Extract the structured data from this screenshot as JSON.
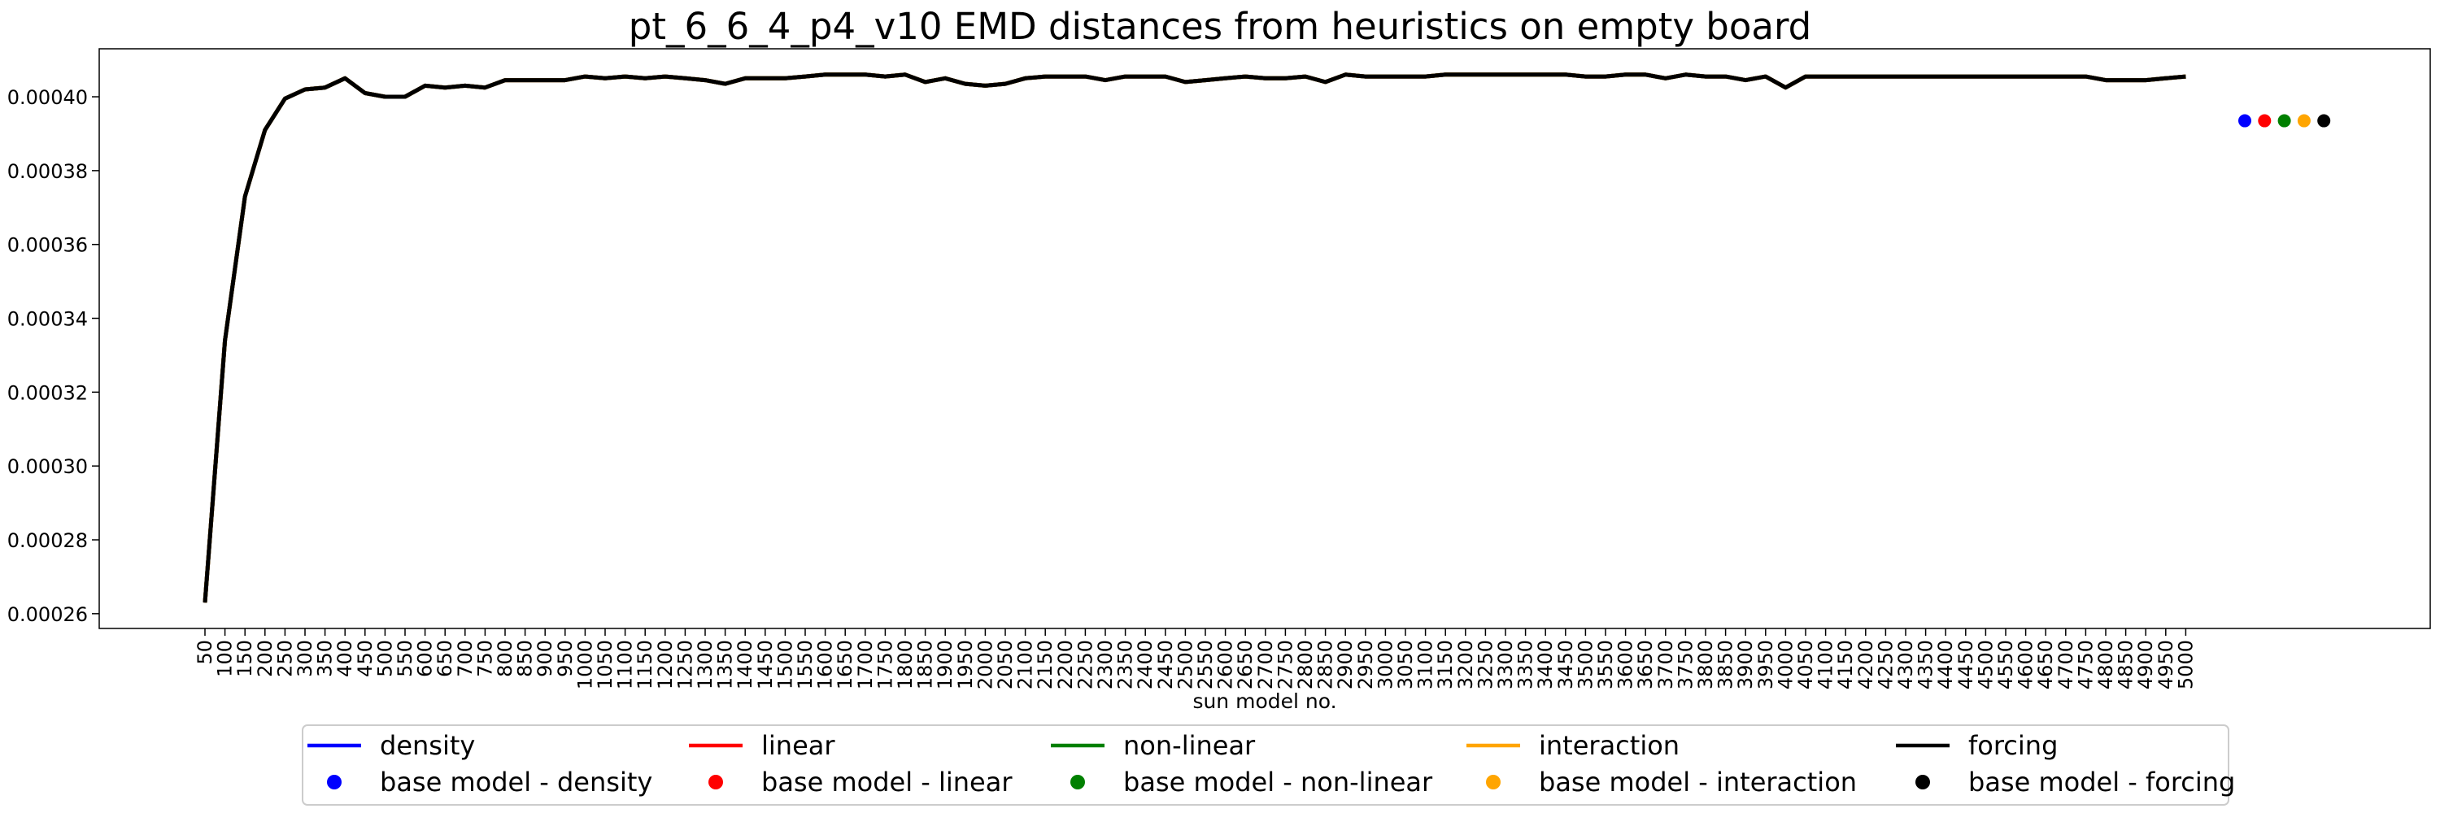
{
  "chart_data": {
    "type": "line",
    "title": "pt_6_6_4_p4_v10 EMD distances from heuristics on empty board",
    "xlabel": "sun model no.",
    "ylabel": "",
    "ylim": [
      0.000256,
      0.000413
    ],
    "yticks": [
      "0.00026",
      "0.00028",
      "0.00030",
      "0.00032",
      "0.00034",
      "0.00036",
      "0.00038",
      "0.00040"
    ],
    "ytick_values": [
      0.00026,
      0.00028,
      0.0003,
      0.00032,
      0.00034,
      0.00036,
      0.00038,
      0.0004
    ],
    "x": [
      "50",
      "100",
      "150",
      "200",
      "250",
      "300",
      "350",
      "400",
      "450",
      "500",
      "550",
      "600",
      "650",
      "700",
      "750",
      "800",
      "850",
      "900",
      "950",
      "1000",
      "1050",
      "1100",
      "1150",
      "1200",
      "1250",
      "1300",
      "1350",
      "1400",
      "1450",
      "1500",
      "1550",
      "1600",
      "1650",
      "1700",
      "1750",
      "1800",
      "1850",
      "1900",
      "1950",
      "2000",
      "2050",
      "2100",
      "2150",
      "2200",
      "2250",
      "2300",
      "2350",
      "2400",
      "2450",
      "2500",
      "2550",
      "2600",
      "2650",
      "2700",
      "2750",
      "2800",
      "2850",
      "2900",
      "2950",
      "3000",
      "3050",
      "3100",
      "3150",
      "3200",
      "3250",
      "3300",
      "3350",
      "3400",
      "3450",
      "3500",
      "3550",
      "3600",
      "3650",
      "3700",
      "3750",
      "3800",
      "3850",
      "3900",
      "3950",
      "4000",
      "4050",
      "4100",
      "4150",
      "4200",
      "4250",
      "4300",
      "4350",
      "4400",
      "4450",
      "4500",
      "4550",
      "4600",
      "4650",
      "4700",
      "4750",
      "4800",
      "4850",
      "4900",
      "4950",
      "5000"
    ],
    "series": [
      {
        "name": "density",
        "color": "#0000ff",
        "values": [
          0.000263,
          0.000334,
          0.000373,
          0.000391,
          0.0003995,
          0.000402,
          0.0004025,
          0.000405,
          0.000401,
          0.0004,
          0.0004,
          0.000403,
          0.0004025,
          0.000403,
          0.0004025,
          0.0004045,
          0.0004045,
          0.0004045,
          0.0004045,
          0.0004055,
          0.000405,
          0.0004055,
          0.000405,
          0.0004055,
          0.000405,
          0.0004045,
          0.0004035,
          0.000405,
          0.000405,
          0.000405,
          0.0004055,
          0.000406,
          0.000406,
          0.000406,
          0.0004055,
          0.000406,
          0.000404,
          0.000405,
          0.0004035,
          0.000403,
          0.0004035,
          0.000405,
          0.0004055,
          0.0004055,
          0.0004055,
          0.0004045,
          0.0004055,
          0.0004055,
          0.0004055,
          0.000404,
          0.0004045,
          0.000405,
          0.0004055,
          0.000405,
          0.000405,
          0.0004055,
          0.000404,
          0.000406,
          0.0004055,
          0.0004055,
          0.0004055,
          0.0004055,
          0.000406,
          0.000406,
          0.000406,
          0.000406,
          0.000406,
          0.000406,
          0.000406,
          0.0004055,
          0.0004055,
          0.000406,
          0.000406,
          0.000405,
          0.000406,
          0.0004055,
          0.0004055,
          0.0004045,
          0.0004055,
          0.0004025,
          0.0004055,
          0.0004055,
          0.0004055,
          0.0004055,
          0.0004055,
          0.0004055,
          0.0004055,
          0.0004055,
          0.0004055,
          0.0004055,
          0.0004055,
          0.0004055,
          0.0004055,
          0.0004055,
          0.0004055,
          0.0004045,
          0.0004045,
          0.0004045,
          0.000405,
          0.0004055
        ]
      },
      {
        "name": "linear",
        "color": "#ff0000",
        "values": [
          0.000263,
          0.000334,
          0.000373,
          0.000391,
          0.0003995,
          0.000402,
          0.0004025,
          0.000405,
          0.000401,
          0.0004,
          0.0004,
          0.000403,
          0.0004025,
          0.000403,
          0.0004025,
          0.0004045,
          0.0004045,
          0.0004045,
          0.0004045,
          0.0004055,
          0.000405,
          0.0004055,
          0.000405,
          0.0004055,
          0.000405,
          0.0004045,
          0.0004035,
          0.000405,
          0.000405,
          0.000405,
          0.0004055,
          0.000406,
          0.000406,
          0.000406,
          0.0004055,
          0.000406,
          0.000404,
          0.000405,
          0.0004035,
          0.000403,
          0.0004035,
          0.000405,
          0.0004055,
          0.0004055,
          0.0004055,
          0.0004045,
          0.0004055,
          0.0004055,
          0.0004055,
          0.000404,
          0.0004045,
          0.000405,
          0.0004055,
          0.000405,
          0.000405,
          0.0004055,
          0.000404,
          0.000406,
          0.0004055,
          0.0004055,
          0.0004055,
          0.0004055,
          0.000406,
          0.000406,
          0.000406,
          0.000406,
          0.000406,
          0.000406,
          0.000406,
          0.0004055,
          0.0004055,
          0.000406,
          0.000406,
          0.000405,
          0.000406,
          0.0004055,
          0.0004055,
          0.0004045,
          0.0004055,
          0.0004025,
          0.0004055,
          0.0004055,
          0.0004055,
          0.0004055,
          0.0004055,
          0.0004055,
          0.0004055,
          0.0004055,
          0.0004055,
          0.0004055,
          0.0004055,
          0.0004055,
          0.0004055,
          0.0004055,
          0.0004055,
          0.0004045,
          0.0004045,
          0.0004045,
          0.000405,
          0.0004055
        ]
      },
      {
        "name": "non-linear",
        "color": "#008000",
        "values": [
          0.000263,
          0.000334,
          0.000373,
          0.000391,
          0.0003995,
          0.000402,
          0.0004025,
          0.000405,
          0.000401,
          0.0004,
          0.0004,
          0.000403,
          0.0004025,
          0.000403,
          0.0004025,
          0.0004045,
          0.0004045,
          0.0004045,
          0.0004045,
          0.0004055,
          0.000405,
          0.0004055,
          0.000405,
          0.0004055,
          0.000405,
          0.0004045,
          0.0004035,
          0.000405,
          0.000405,
          0.000405,
          0.0004055,
          0.000406,
          0.000406,
          0.000406,
          0.0004055,
          0.000406,
          0.000404,
          0.000405,
          0.0004035,
          0.000403,
          0.0004035,
          0.000405,
          0.0004055,
          0.0004055,
          0.0004055,
          0.0004045,
          0.0004055,
          0.0004055,
          0.0004055,
          0.000404,
          0.0004045,
          0.000405,
          0.0004055,
          0.000405,
          0.000405,
          0.0004055,
          0.000404,
          0.000406,
          0.0004055,
          0.0004055,
          0.0004055,
          0.0004055,
          0.000406,
          0.000406,
          0.000406,
          0.000406,
          0.000406,
          0.000406,
          0.000406,
          0.0004055,
          0.0004055,
          0.000406,
          0.000406,
          0.000405,
          0.000406,
          0.0004055,
          0.0004055,
          0.0004045,
          0.0004055,
          0.0004025,
          0.0004055,
          0.0004055,
          0.0004055,
          0.0004055,
          0.0004055,
          0.0004055,
          0.0004055,
          0.0004055,
          0.0004055,
          0.0004055,
          0.0004055,
          0.0004055,
          0.0004055,
          0.0004055,
          0.0004055,
          0.0004045,
          0.0004045,
          0.0004045,
          0.000405,
          0.0004055
        ]
      },
      {
        "name": "interaction",
        "color": "#ffa500",
        "values": [
          0.000263,
          0.000334,
          0.000373,
          0.000391,
          0.0003995,
          0.000402,
          0.0004025,
          0.000405,
          0.000401,
          0.0004,
          0.0004,
          0.000403,
          0.0004025,
          0.000403,
          0.0004025,
          0.0004045,
          0.0004045,
          0.0004045,
          0.0004045,
          0.0004055,
          0.000405,
          0.0004055,
          0.000405,
          0.0004055,
          0.000405,
          0.0004045,
          0.0004035,
          0.000405,
          0.000405,
          0.000405,
          0.0004055,
          0.000406,
          0.000406,
          0.000406,
          0.0004055,
          0.000406,
          0.000404,
          0.000405,
          0.0004035,
          0.000403,
          0.0004035,
          0.000405,
          0.0004055,
          0.0004055,
          0.0004055,
          0.0004045,
          0.0004055,
          0.0004055,
          0.0004055,
          0.000404,
          0.0004045,
          0.000405,
          0.0004055,
          0.000405,
          0.000405,
          0.0004055,
          0.000404,
          0.000406,
          0.0004055,
          0.0004055,
          0.0004055,
          0.0004055,
          0.000406,
          0.000406,
          0.000406,
          0.000406,
          0.000406,
          0.000406,
          0.000406,
          0.0004055,
          0.0004055,
          0.000406,
          0.000406,
          0.000405,
          0.000406,
          0.0004055,
          0.0004055,
          0.0004045,
          0.0004055,
          0.0004025,
          0.0004055,
          0.0004055,
          0.0004055,
          0.0004055,
          0.0004055,
          0.0004055,
          0.0004055,
          0.0004055,
          0.0004055,
          0.0004055,
          0.0004055,
          0.0004055,
          0.0004055,
          0.0004055,
          0.0004055,
          0.0004045,
          0.0004045,
          0.0004045,
          0.000405,
          0.0004055
        ]
      },
      {
        "name": "forcing",
        "color": "#000000",
        "values": [
          0.000263,
          0.000334,
          0.000373,
          0.000391,
          0.0003995,
          0.000402,
          0.0004025,
          0.000405,
          0.000401,
          0.0004,
          0.0004,
          0.000403,
          0.0004025,
          0.000403,
          0.0004025,
          0.0004045,
          0.0004045,
          0.0004045,
          0.0004045,
          0.0004055,
          0.000405,
          0.0004055,
          0.000405,
          0.0004055,
          0.000405,
          0.0004045,
          0.0004035,
          0.000405,
          0.000405,
          0.000405,
          0.0004055,
          0.000406,
          0.000406,
          0.000406,
          0.0004055,
          0.000406,
          0.000404,
          0.000405,
          0.0004035,
          0.000403,
          0.0004035,
          0.000405,
          0.0004055,
          0.0004055,
          0.0004055,
          0.0004045,
          0.0004055,
          0.0004055,
          0.0004055,
          0.000404,
          0.0004045,
          0.000405,
          0.0004055,
          0.000405,
          0.000405,
          0.0004055,
          0.000404,
          0.000406,
          0.0004055,
          0.0004055,
          0.0004055,
          0.0004055,
          0.000406,
          0.000406,
          0.000406,
          0.000406,
          0.000406,
          0.000406,
          0.000406,
          0.0004055,
          0.0004055,
          0.000406,
          0.000406,
          0.000405,
          0.000406,
          0.0004055,
          0.0004055,
          0.0004045,
          0.0004055,
          0.0004025,
          0.0004055,
          0.0004055,
          0.0004055,
          0.0004055,
          0.0004055,
          0.0004055,
          0.0004055,
          0.0004055,
          0.0004055,
          0.0004055,
          0.0004055,
          0.0004055,
          0.0004055,
          0.0004055,
          0.0004055,
          0.0004045,
          0.0004045,
          0.0004045,
          0.000405,
          0.0004055
        ]
      }
    ],
    "base_points": [
      {
        "name": "base model - density",
        "color": "#0000ff",
        "value": 0.0003935
      },
      {
        "name": "base model - linear",
        "color": "#ff0000",
        "value": 0.0003935
      },
      {
        "name": "base model - non-linear",
        "color": "#008000",
        "value": 0.0003935
      },
      {
        "name": "base model - interaction",
        "color": "#ffa500",
        "value": 0.0003935
      },
      {
        "name": "base model - forcing",
        "color": "#000000",
        "value": 0.0003935
      }
    ],
    "legend_placement": "bottom-center",
    "grid": false
  }
}
